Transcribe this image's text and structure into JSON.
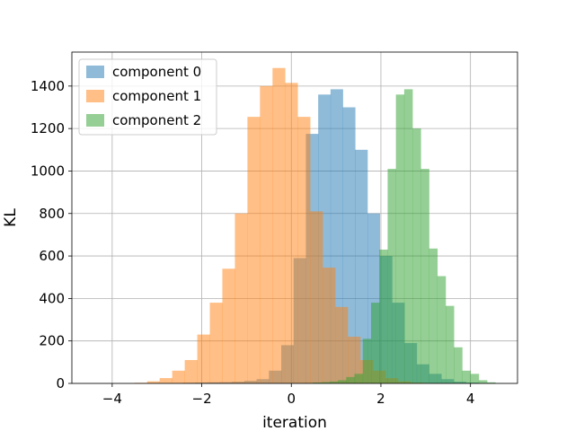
{
  "chart_data": {
    "type": "histogram",
    "title": "",
    "xlabel": "iteration",
    "ylabel": "KL",
    "xlim": [
      -4.9,
      5.05
    ],
    "ylim": [
      0,
      1560
    ],
    "xticks": [
      -4,
      -2,
      0,
      2,
      4
    ],
    "xtick_labels": [
      "−4",
      "−2",
      "0",
      "2",
      "4"
    ],
    "yticks": [
      0,
      200,
      400,
      600,
      800,
      1000,
      1200,
      1400
    ],
    "ytick_labels": [
      "0",
      "200",
      "400",
      "600",
      "800",
      "1000",
      "1200",
      "1400"
    ],
    "grid": true,
    "legend_position": "upper-left",
    "alpha": 0.5,
    "series": [
      {
        "name": "component 0",
        "color": "#1f77b4",
        "bin_width": 0.275,
        "bins": [
          [
            -3.25,
            1
          ],
          [
            -2.975,
            2
          ],
          [
            -2.7,
            2
          ],
          [
            -2.425,
            3
          ],
          [
            -2.15,
            4
          ],
          [
            -1.875,
            5
          ],
          [
            -1.6,
            6
          ],
          [
            -1.325,
            8
          ],
          [
            -1.05,
            12
          ],
          [
            -0.775,
            20
          ],
          [
            -0.5,
            60
          ],
          [
            -0.225,
            180
          ],
          [
            0.05,
            590
          ],
          [
            0.325,
            1175
          ],
          [
            0.6,
            1360
          ],
          [
            0.875,
            1385
          ],
          [
            1.15,
            1300
          ],
          [
            1.425,
            1100
          ],
          [
            1.7,
            800
          ],
          [
            1.975,
            600
          ],
          [
            2.25,
            380
          ],
          [
            2.525,
            190
          ],
          [
            2.8,
            90
          ],
          [
            3.075,
            45
          ],
          [
            3.35,
            20
          ],
          [
            3.625,
            8
          ],
          [
            3.9,
            4
          ],
          [
            4.175,
            2
          ],
          [
            4.45,
            1
          ]
        ]
      },
      {
        "name": "component 1",
        "color": "#ff7f0e",
        "bin_width": 0.28,
        "bins": [
          [
            -3.5,
            3
          ],
          [
            -3.22,
            10
          ],
          [
            -2.94,
            25
          ],
          [
            -2.66,
            60
          ],
          [
            -2.38,
            110
          ],
          [
            -2.1,
            230
          ],
          [
            -1.82,
            380
          ],
          [
            -1.54,
            540
          ],
          [
            -1.26,
            800
          ],
          [
            -0.98,
            1255
          ],
          [
            -0.7,
            1400
          ],
          [
            -0.42,
            1485
          ],
          [
            -0.14,
            1415
          ],
          [
            0.14,
            1255
          ],
          [
            0.42,
            810
          ],
          [
            0.7,
            545
          ],
          [
            0.98,
            360
          ],
          [
            1.26,
            220
          ],
          [
            1.54,
            110
          ],
          [
            1.82,
            60
          ],
          [
            2.1,
            25
          ],
          [
            2.38,
            10
          ],
          [
            2.66,
            4
          ],
          [
            2.94,
            1
          ]
        ]
      },
      {
        "name": "component 2",
        "color": "#2ca02c",
        "bin_width": 0.185,
        "bins": [
          [
            0.3,
            2
          ],
          [
            0.485,
            4
          ],
          [
            0.67,
            6
          ],
          [
            0.855,
            9
          ],
          [
            1.04,
            15
          ],
          [
            1.225,
            30
          ],
          [
            1.41,
            45
          ],
          [
            1.595,
            210
          ],
          [
            1.78,
            380
          ],
          [
            1.965,
            630
          ],
          [
            2.15,
            1010
          ],
          [
            2.335,
            1360
          ],
          [
            2.52,
            1385
          ],
          [
            2.705,
            1200
          ],
          [
            2.89,
            1010
          ],
          [
            3.075,
            635
          ],
          [
            3.26,
            505
          ],
          [
            3.445,
            365
          ],
          [
            3.63,
            170
          ],
          [
            3.815,
            60
          ],
          [
            4.0,
            45
          ],
          [
            4.185,
            15
          ],
          [
            4.37,
            5
          ]
        ]
      }
    ]
  }
}
